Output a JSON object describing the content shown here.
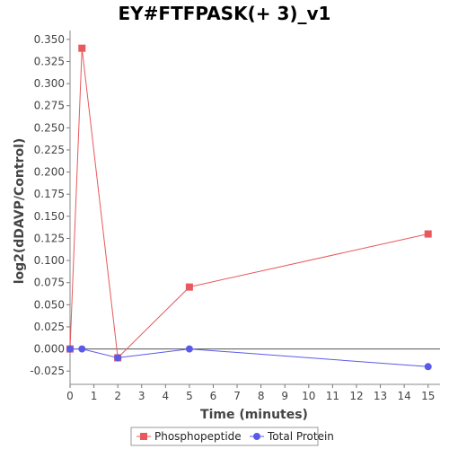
{
  "chart_data": {
    "type": "line",
    "title": "EY#FTFPASK(+ 3)_v1",
    "xlabel": "Time (minutes)",
    "ylabel": "log2(dDAVP/Control)",
    "xlim": [
      0,
      15.5
    ],
    "ylim": [
      -0.04,
      0.36
    ],
    "x_ticks": [
      0,
      1,
      2,
      3,
      4,
      5,
      6,
      7,
      8,
      9,
      10,
      11,
      12,
      13,
      14,
      15
    ],
    "y_ticks": [
      -0.025,
      0.0,
      0.025,
      0.05,
      0.075,
      0.1,
      0.125,
      0.15,
      0.175,
      0.2,
      0.225,
      0.25,
      0.275,
      0.3,
      0.325,
      0.35
    ],
    "y_tick_labels": [
      "-0.025",
      "0.000",
      "0.025",
      "0.050",
      "0.075",
      "0.100",
      "0.125",
      "0.150",
      "0.175",
      "0.200",
      "0.225",
      "0.250",
      "0.275",
      "0.300",
      "0.325",
      "0.350"
    ],
    "grid": false,
    "zero_line": true,
    "legend_position": "bottom",
    "series": [
      {
        "name": "Phosphopeptide",
        "color": "#e8585c",
        "marker": "square",
        "x": [
          0,
          0.5,
          2,
          5,
          15
        ],
        "y": [
          0.0,
          0.34,
          -0.01,
          0.07,
          0.13
        ]
      },
      {
        "name": "Total Protein",
        "color": "#5a5ae8",
        "marker": "circle",
        "x": [
          0,
          0.5,
          2,
          5,
          15
        ],
        "y": [
          0.0,
          0.0,
          -0.01,
          0.0,
          -0.02
        ]
      }
    ]
  }
}
